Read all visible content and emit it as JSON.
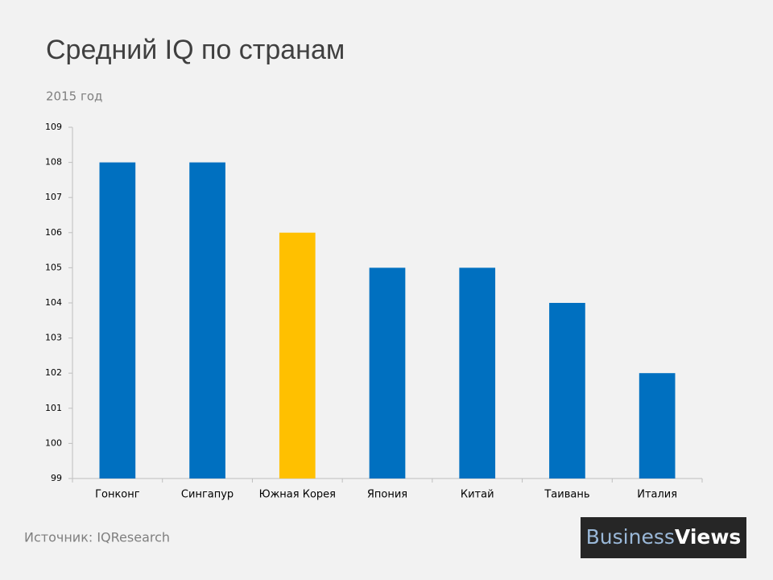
{
  "chart_data": {
    "type": "bar",
    "title": "Средний IQ по странам",
    "subtitle": "2015 год",
    "categories": [
      "Гонконг",
      "Сингапур",
      "Южная Корея",
      "Япония",
      "Китай",
      "Таивань",
      "Италия"
    ],
    "values": [
      108,
      108,
      106,
      105,
      105,
      104,
      102
    ],
    "colors": [
      "#0070c0",
      "#0070c0",
      "#ffc000",
      "#0070c0",
      "#0070c0",
      "#0070c0",
      "#0070c0"
    ],
    "ylim": [
      99,
      109
    ],
    "yticks": [
      99,
      100,
      101,
      102,
      103,
      104,
      105,
      106,
      107,
      108,
      109
    ],
    "grid": false
  },
  "footer": {
    "source": "Источник: IQResearch",
    "logo": {
      "first": "Business",
      "second": "Views"
    }
  }
}
